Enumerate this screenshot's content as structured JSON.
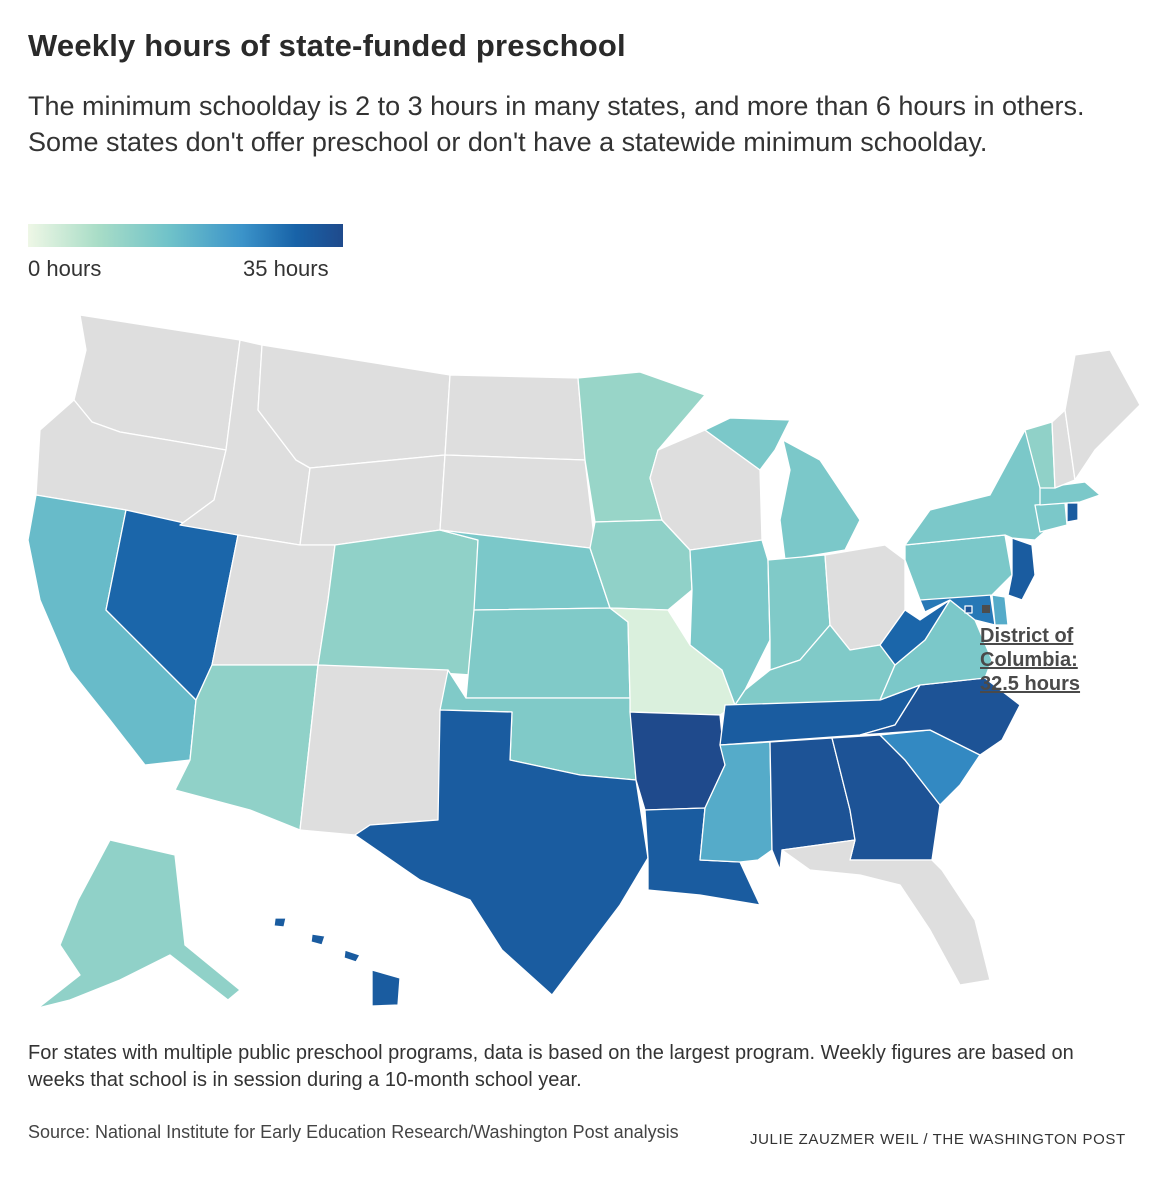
{
  "title": "Weekly hours of state-funded preschool",
  "subtitle": "The minimum schoolday is 2 to 3 hours in many states, and more than 6 hours in others. Some states don't offer preschool or don't have a statewide minimum schoolday.",
  "legend": {
    "min_label": "0 hours",
    "max_label": "35 hours",
    "min_value": 0,
    "max_value": 35
  },
  "colors": {
    "no_data": "#dedede",
    "scale": [
      "#eef7e6",
      "#a9ddc7",
      "#6fc2c9",
      "#3b93c9",
      "#1863a8",
      "#1f4a8c"
    ],
    "border": "#ffffff"
  },
  "annotation": {
    "line1": "District of",
    "line2": "Columbia:",
    "line3": "32.5 hours"
  },
  "note": "For states with multiple public preschool programs, data is based on the largest program. Weekly figures are based on weeks that school is in session during a 10-month school year.",
  "source": "Source: National Institute for Early Education Research/Washington Post analysis",
  "credit": "JULIE ZAUZMER WEIL / THE WASHINGTON POST",
  "chart_data": {
    "type": "choropleth",
    "metric": "Weekly hours of state-funded preschool",
    "range": [
      0,
      35
    ],
    "states": {
      "WA": null,
      "OR": null,
      "ID": null,
      "MT": null,
      "WY": null,
      "ND": null,
      "SD": null,
      "UT": null,
      "NM": null,
      "OH": null,
      "NH": null,
      "ME": null,
      "IN": 12,
      "CA": 15,
      "NV": 27.5,
      "AZ": 10,
      "CO": 10,
      "NE": 12.5,
      "KS": 12,
      "OK": 12,
      "TX": 30,
      "MN": 9,
      "IA": 10,
      "MO": 2,
      "AR": 35,
      "LA": 30,
      "MS": 17.5,
      "AL": 32.5,
      "GA": 32.5,
      "TN": 30,
      "KY": 12,
      "IL": 12.5,
      "WI": null,
      "MI": 12.5,
      "FL": null,
      "SC": 22.5,
      "NC": 32.5,
      "VA": 12.5,
      "WV": 27.5,
      "PA": 12.5,
      "NY": 12.5,
      "VT": 10,
      "MA": 12.5,
      "CT": 12.5,
      "RI": 30,
      "NJ": 30,
      "DE": 17.5,
      "MD": 25,
      "DC": 32.5,
      "AK": 10,
      "HI": 30
    }
  }
}
